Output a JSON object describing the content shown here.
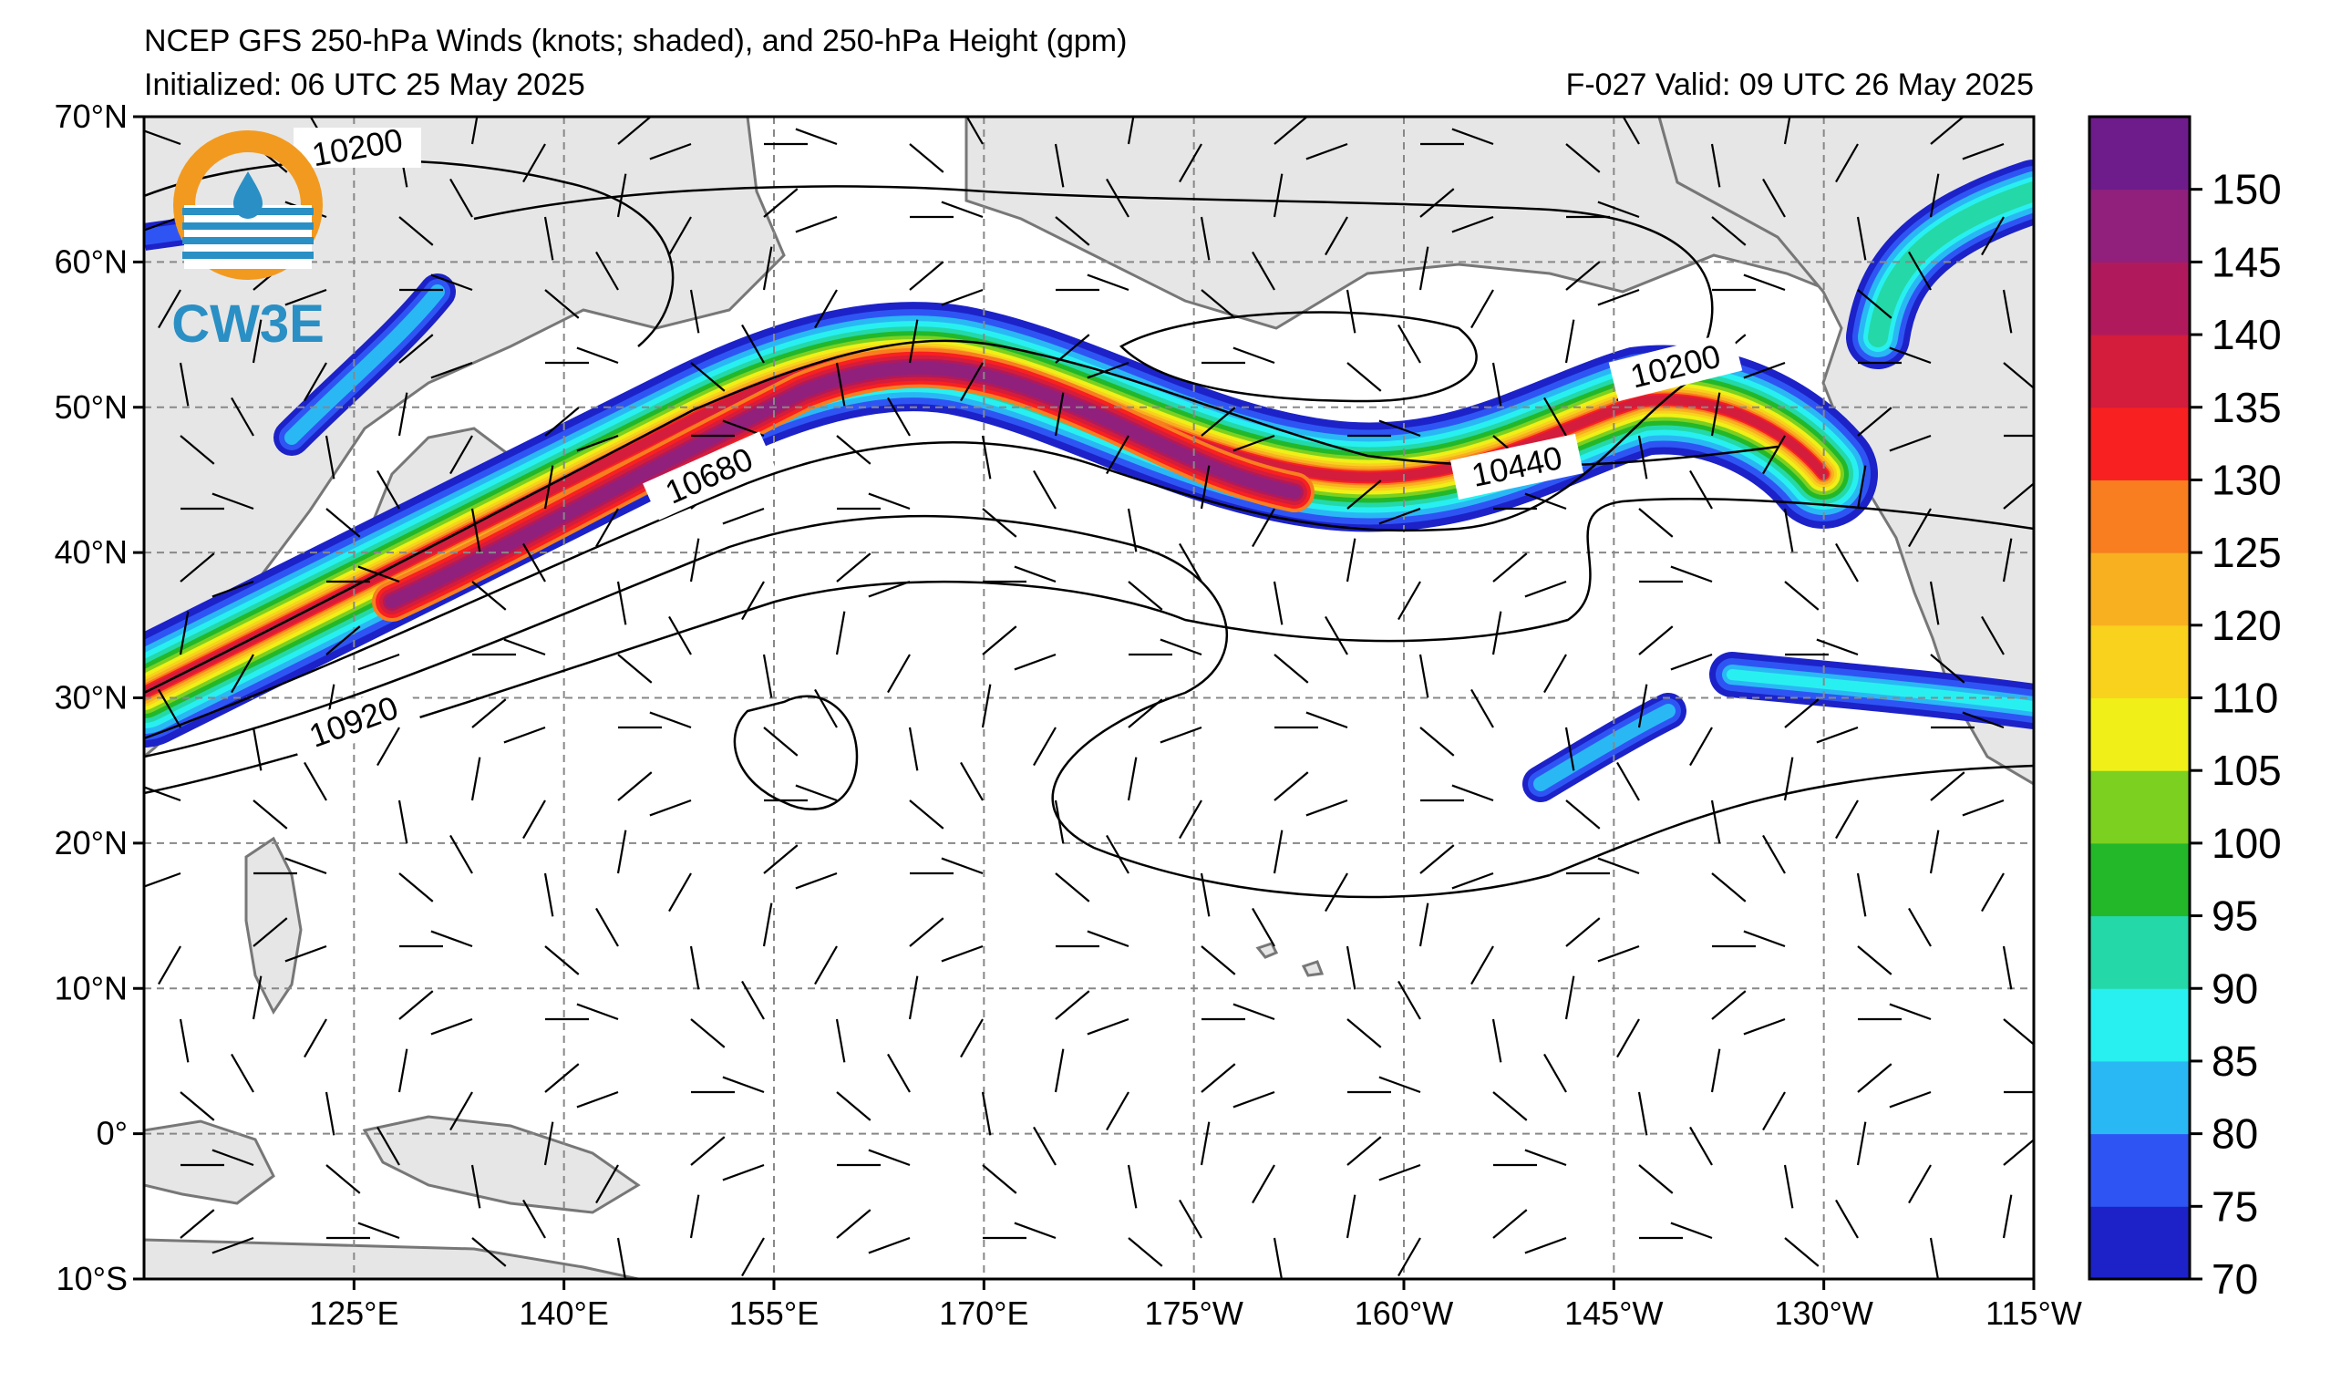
{
  "header": {
    "title": "NCEP GFS 250-hPa Winds (knots; shaded), and 250-hPa Height (gpm)",
    "initialized": "Initialized: 06 UTC 25 May 2025",
    "valid": "F-027  Valid: 09 UTC 26 May 2025"
  },
  "logo": {
    "text": "CW3E",
    "color": "#2a8fc4",
    "ring_color": "#f29a1f"
  },
  "map": {
    "lon_range": [
      110,
      245
    ],
    "lat_range": [
      -10,
      70
    ],
    "lat_labels": [
      "70°N",
      "60°N",
      "50°N",
      "40°N",
      "30°N",
      "20°N",
      "10°N",
      "0°",
      "10°S"
    ],
    "lon_labels": [
      "125°E",
      "140°E",
      "155°E",
      "170°E",
      "175°W",
      "160°W",
      "145°W",
      "130°W",
      "115°W"
    ],
    "land_color": "#e6e6e6",
    "contour_labels": [
      "10200",
      "10680",
      "10920",
      "10200",
      "10440"
    ]
  },
  "colorbar": {
    "ticks": [
      "70",
      "75",
      "80",
      "85",
      "90",
      "95",
      "100",
      "105",
      "110",
      "120",
      "125",
      "130",
      "135",
      "140",
      "145",
      "150"
    ],
    "colors": [
      "#1c22c8",
      "#2e55f4",
      "#2ab8f5",
      "#28f0f0",
      "#24d8a8",
      "#22b82a",
      "#7cd020",
      "#f0f018",
      "#f8d21c",
      "#f8b020",
      "#f87e20",
      "#f82020",
      "#d41c3c",
      "#b01a5c",
      "#90207c",
      "#6e1c8c"
    ]
  }
}
